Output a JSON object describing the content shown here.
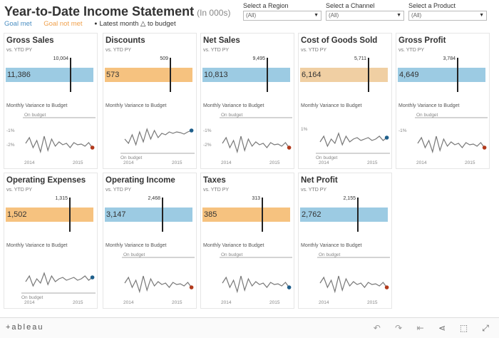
{
  "header": {
    "title": "Year-to-Date Income Statement",
    "title_unit": "(In 000s)",
    "legend": {
      "met": "Goal met",
      "not_met": "Goal not met",
      "latest": "Latest month △ to budget"
    }
  },
  "filters": [
    {
      "label": "Select a Region",
      "value": "(All)"
    },
    {
      "label": "Select a Channel",
      "value": "(All)"
    },
    {
      "label": "Select a Product",
      "value": "(All)"
    }
  ],
  "colors": {
    "goal_met": "#9ccbe3",
    "goal_not_met": "#f6c27f",
    "goal_not_met_light": "#f0cfa3",
    "latest_good": "#1f5f8b",
    "latest_bad": "#b23a1c",
    "line": "#777777",
    "budget_line": "#aaaaaa"
  },
  "common": {
    "vs_label": "vs. YTD PY",
    "variance_title": "Monthly Variance to Budget",
    "budget_label": "On budget",
    "year_start": "2014",
    "year_end": "2015"
  },
  "cards": [
    {
      "name": "Gross Sales",
      "value": "11,386",
      "target": "10,004",
      "status": "met",
      "budget_pos": "top",
      "ticks": [
        "-1%",
        "-2%"
      ],
      "latest": "bad",
      "actual_num": 11386,
      "target_num": 10004
    },
    {
      "name": "Discounts",
      "value": "573",
      "target": "509",
      "status": "not_met",
      "budget_pos": "bottom",
      "ticks": [],
      "latest": "good",
      "actual_num": 573,
      "target_num": 509
    },
    {
      "name": "Net Sales",
      "value": "10,813",
      "target": "9,495",
      "status": "met",
      "budget_pos": "top",
      "ticks": [
        "-1%",
        "-2%"
      ],
      "latest": "bad",
      "actual_num": 10813,
      "target_num": 9495
    },
    {
      "name": "Cost of Goods Sold",
      "value": "6,164",
      "target": "5,711",
      "status": "not_met_light",
      "budget_pos": "bottom",
      "ticks": [
        "1%"
      ],
      "latest": "good",
      "actual_num": 6164,
      "target_num": 5711
    },
    {
      "name": "Gross Profit",
      "value": "4,649",
      "target": "3,784",
      "status": "met",
      "budget_pos": "top",
      "ticks": [
        "-1%"
      ],
      "latest": "bad",
      "actual_num": 4649,
      "target_num": 3784
    },
    {
      "name": "Operating Expenses",
      "value": "1,502",
      "target": "1,315",
      "status": "not_met",
      "budget_pos": "bottom",
      "ticks": [],
      "latest": "good",
      "actual_num": 1502,
      "target_num": 1315
    },
    {
      "name": "Operating Income",
      "value": "3,147",
      "target": "2,468",
      "status": "met",
      "budget_pos": "top",
      "ticks": [],
      "latest": "bad",
      "actual_num": 3147,
      "target_num": 2468
    },
    {
      "name": "Taxes",
      "value": "385",
      "target": "313",
      "status": "not_met",
      "budget_pos": "top",
      "ticks": [],
      "latest": "good",
      "actual_num": 385,
      "target_num": 313
    },
    {
      "name": "Net Profit",
      "value": "2,762",
      "target": "2,155",
      "status": "met",
      "budget_pos": "top",
      "ticks": [],
      "latest": "bad",
      "actual_num": 2762,
      "target_num": 2155
    }
  ],
  "footer": {
    "logo": "+ableau",
    "tools": [
      "undo-icon",
      "redo-icon",
      "revert-icon",
      "share-icon",
      "download-icon",
      "fullscreen-icon"
    ]
  }
}
